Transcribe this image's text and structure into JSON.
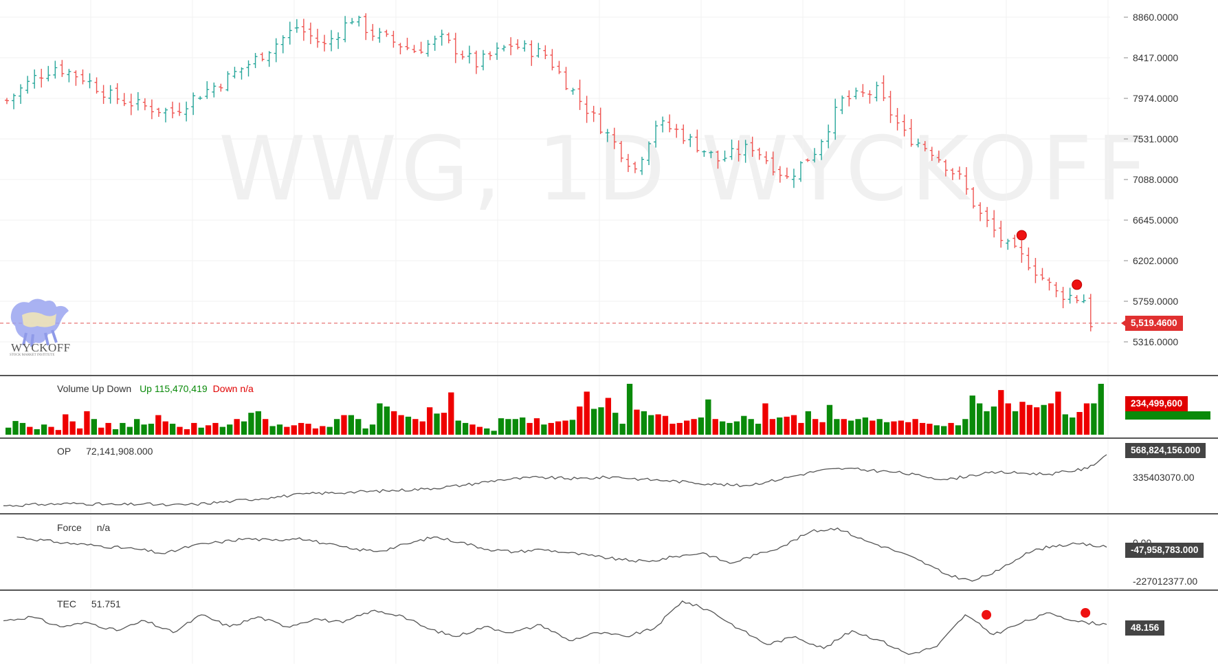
{
  "watermark": "WWG, 1D WYCKOFF",
  "logo": {
    "text": "WYCKOFF",
    "subtitle": "STOCK MARKET INSTITUTE"
  },
  "colors": {
    "up": "#26a69a",
    "down": "#ef5350",
    "vol_up": "#0a8a0a",
    "vol_down": "#ee0000",
    "line": "#555555",
    "marker": "#ee1111"
  },
  "price": {
    "axis_ticks": [
      "8860.0000",
      "8417.0000",
      "7974.0000",
      "7531.0000",
      "7088.0000",
      "6645.0000",
      "6202.0000",
      "5759.0000",
      "5316.0000"
    ],
    "last_value": "5,519.4600",
    "last_numeric": 5519.46
  },
  "volume": {
    "title": "Volume Up Down",
    "up_text": "Up 115,470,419",
    "down_text": "Down n/a",
    "last_tag": "234,499,600"
  },
  "op": {
    "title": "OP",
    "value": "72,141,908.000",
    "axis_tick": "335403070.00",
    "last_tag": "568,824,156.000"
  },
  "force": {
    "title": "Force",
    "value": "n/a",
    "axis_ticks": [
      "0.00",
      "-227012377.00"
    ],
    "last_tag": "-47,958,783.000"
  },
  "tec": {
    "title": "TEC",
    "value": "51.751",
    "last_tag": "48.156"
  },
  "chart_data": [
    {
      "type": "ohlc",
      "title": "WWG, 1D WYCKOFF",
      "ylim": [
        5100,
        8980
      ],
      "close_trend": [
        [
          0,
          7950
        ],
        [
          4,
          8200
        ],
        [
          7,
          8320
        ],
        [
          11,
          8200
        ],
        [
          15,
          8000
        ],
        [
          19,
          7900
        ],
        [
          24,
          7820
        ],
        [
          27,
          7980
        ],
        [
          31,
          8150
        ],
        [
          36,
          8400
        ],
        [
          42,
          8750
        ],
        [
          46,
          8550
        ],
        [
          50,
          8850
        ],
        [
          53,
          8680
        ],
        [
          59,
          8500
        ],
        [
          63,
          8620
        ],
        [
          68,
          8350
        ],
        [
          73,
          8560
        ],
        [
          78,
          8450
        ],
        [
          83,
          7950
        ],
        [
          87,
          7580
        ],
        [
          91,
          7200
        ],
        [
          94,
          7700
        ],
        [
          97,
          7620
        ],
        [
          103,
          7300
        ],
        [
          108,
          7450
        ],
        [
          113,
          7100
        ],
        [
          117,
          7400
        ],
        [
          121,
          7950
        ],
        [
          126,
          8050
        ],
        [
          130,
          7580
        ],
        [
          134,
          7400
        ],
        [
          138,
          7100
        ],
        [
          141,
          6700
        ],
        [
          145,
          6350
        ],
        [
          148,
          6180
        ],
        [
          152,
          5850
        ],
        [
          156,
          5780
        ],
        [
          157,
          5520
        ]
      ],
      "markers": [
        {
          "bar": 147,
          "value": 6480
        },
        {
          "bar": 155,
          "value": 5940
        }
      ]
    },
    {
      "type": "bar",
      "title": "Volume Up Down",
      "ylim": [
        0,
        260000000
      ],
      "values": [
        18,
        35,
        30,
        20,
        14,
        26,
        20,
        12,
        52,
        34,
        16,
        60,
        40,
        18,
        30,
        14,
        30,
        20,
        40,
        26,
        28,
        50,
        34,
        28,
        20,
        14,
        30,
        18,
        24,
        30,
        20,
        26,
        40,
        34,
        56,
        60,
        40,
        22,
        26,
        20,
        24,
        30,
        28,
        16,
        22,
        20,
        40,
        50,
        50,
        40,
        16,
        26,
        80,
        72,
        60,
        50,
        46,
        40,
        34,
        70,
        54,
        56,
        108,
        36,
        30,
        26,
        20,
        16,
        10,
        42,
        40,
        40,
        44,
        30,
        42,
        26,
        30,
        34,
        36,
        38,
        72,
        110,
        66,
        70,
        94,
        56,
        28,
        130,
        64,
        60,
        50,
        52,
        48,
        28,
        30,
        36,
        40,
        44,
        90,
        40,
        34,
        30,
        34,
        48,
        40,
        28,
        80,
        40,
        44,
        46,
        50,
        30,
        60,
        40,
        32,
        76,
        40,
        40,
        36,
        40,
        44,
        36,
        40,
        32,
        34,
        36,
        32,
        40,
        30,
        28,
        24,
        22,
        30,
        24,
        40,
        100,
        80,
        60,
        72,
        114,
        80,
        60,
        84,
        76,
        70,
        76,
        80,
        110,
        52,
        44,
        58,
        80,
        80,
        234.5
      ],
      "unit_note": "values in millions"
    },
    {
      "type": "line",
      "title": "OP",
      "ylim": [
        0,
        650000000
      ],
      "points": [
        [
          0,
          20
        ],
        [
          6,
          35
        ],
        [
          12,
          45
        ],
        [
          18,
          30
        ],
        [
          22,
          40
        ],
        [
          26,
          25
        ],
        [
          30,
          35
        ],
        [
          36,
          70
        ],
        [
          42,
          110
        ],
        [
          48,
          150
        ],
        [
          54,
          165
        ],
        [
          60,
          180
        ],
        [
          66,
          200
        ],
        [
          72,
          240
        ],
        [
          78,
          300
        ],
        [
          84,
          325
        ],
        [
          90,
          310
        ],
        [
          96,
          330
        ],
        [
          100,
          305
        ],
        [
          104,
          290
        ],
        [
          108,
          270
        ],
        [
          112,
          250
        ],
        [
          116,
          235
        ],
        [
          120,
          280
        ],
        [
          124,
          340
        ],
        [
          128,
          400
        ],
        [
          132,
          420
        ],
        [
          136,
          400
        ],
        [
          140,
          380
        ],
        [
          144,
          340
        ],
        [
          148,
          300
        ],
        [
          152,
          350
        ],
        [
          156,
          380
        ],
        [
          160,
          370
        ],
        [
          164,
          360
        ],
        [
          170,
          420
        ],
        [
          173,
          568.8
        ]
      ],
      "unit_note": "values in millions"
    },
    {
      "type": "line",
      "title": "Force",
      "ylim": [
        -260000000,
        90000000
      ],
      "points": [
        [
          2,
          10
        ],
        [
          8,
          -20
        ],
        [
          14,
          -40
        ],
        [
          20,
          -60
        ],
        [
          24,
          -85
        ],
        [
          28,
          -40
        ],
        [
          32,
          -20
        ],
        [
          36,
          0
        ],
        [
          40,
          -10
        ],
        [
          44,
          5
        ],
        [
          48,
          -30
        ],
        [
          52,
          -60
        ],
        [
          56,
          -70
        ],
        [
          60,
          -30
        ],
        [
          64,
          10
        ],
        [
          68,
          -20
        ],
        [
          72,
          -60
        ],
        [
          76,
          -75
        ],
        [
          80,
          -60
        ],
        [
          84,
          -80
        ],
        [
          88,
          -100
        ],
        [
          92,
          -120
        ],
        [
          96,
          -130
        ],
        [
          100,
          -100
        ],
        [
          104,
          -80
        ],
        [
          108,
          -140
        ],
        [
          112,
          -90
        ],
        [
          116,
          -40
        ],
        [
          120,
          40
        ],
        [
          124,
          60
        ],
        [
          128,
          -10
        ],
        [
          132,
          -60
        ],
        [
          136,
          -120
        ],
        [
          140,
          -200
        ],
        [
          144,
          -240
        ],
        [
          148,
          -180
        ],
        [
          152,
          -80
        ],
        [
          156,
          -40
        ],
        [
          160,
          -30
        ],
        [
          164,
          -47.9
        ]
      ],
      "unit_note": "values in millions"
    },
    {
      "type": "line",
      "title": "TEC",
      "ylim": [
        30,
        62
      ],
      "points": [
        [
          0,
          50
        ],
        [
          4,
          52
        ],
        [
          8,
          47
        ],
        [
          12,
          49
        ],
        [
          16,
          45
        ],
        [
          20,
          50
        ],
        [
          24,
          44
        ],
        [
          28,
          53
        ],
        [
          32,
          47
        ],
        [
          36,
          52
        ],
        [
          40,
          47
        ],
        [
          44,
          51
        ],
        [
          48,
          49
        ],
        [
          52,
          55
        ],
        [
          56,
          53
        ],
        [
          60,
          46
        ],
        [
          64,
          42
        ],
        [
          68,
          47
        ],
        [
          72,
          44
        ],
        [
          76,
          48
        ],
        [
          80,
          40
        ],
        [
          84,
          44
        ],
        [
          88,
          42
        ],
        [
          92,
          46
        ],
        [
          96,
          60
        ],
        [
          100,
          55
        ],
        [
          104,
          46
        ],
        [
          108,
          38
        ],
        [
          112,
          42
        ],
        [
          116,
          36
        ],
        [
          120,
          45
        ],
        [
          124,
          40
        ],
        [
          128,
          33
        ],
        [
          132,
          37
        ],
        [
          136,
          53
        ],
        [
          140,
          43
        ],
        [
          144,
          49
        ],
        [
          148,
          54
        ],
        [
          152,
          49.5
        ],
        [
          156,
          48.2
        ]
      ],
      "markers": [
        {
          "x": 139,
          "value": 53
        },
        {
          "x": 153,
          "value": 54
        }
      ]
    }
  ]
}
